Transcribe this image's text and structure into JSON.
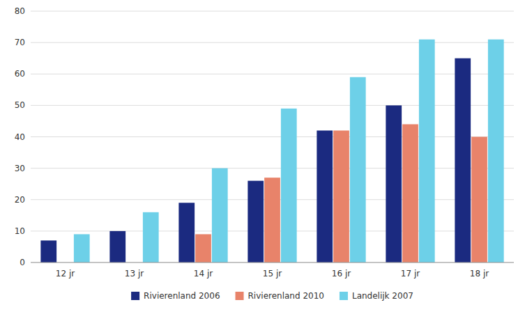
{
  "chart_data": {
    "type": "bar",
    "categories": [
      "12 jr",
      "13 jr",
      "14 jr",
      "15 jr",
      "16 jr",
      "17 jr",
      "18 jr"
    ],
    "series": [
      {
        "name": "Rivierenland 2006",
        "color": "#1B2A80",
        "values": [
          7,
          10,
          19,
          26,
          42,
          50,
          65
        ]
      },
      {
        "name": "Rivierenland 2010",
        "color": "#E8836A",
        "values": [
          0,
          0,
          9,
          27,
          42,
          44,
          40
        ]
      },
      {
        "name": "Landelijk 2007",
        "color": "#6DD0E8",
        "values": [
          9,
          16,
          30,
          49,
          59,
          71,
          71
        ]
      }
    ],
    "ylim": [
      0,
      80
    ],
    "yticks": [
      0,
      10,
      20,
      30,
      40,
      50,
      60,
      70,
      80
    ],
    "grid": true,
    "legend": "bottom"
  }
}
